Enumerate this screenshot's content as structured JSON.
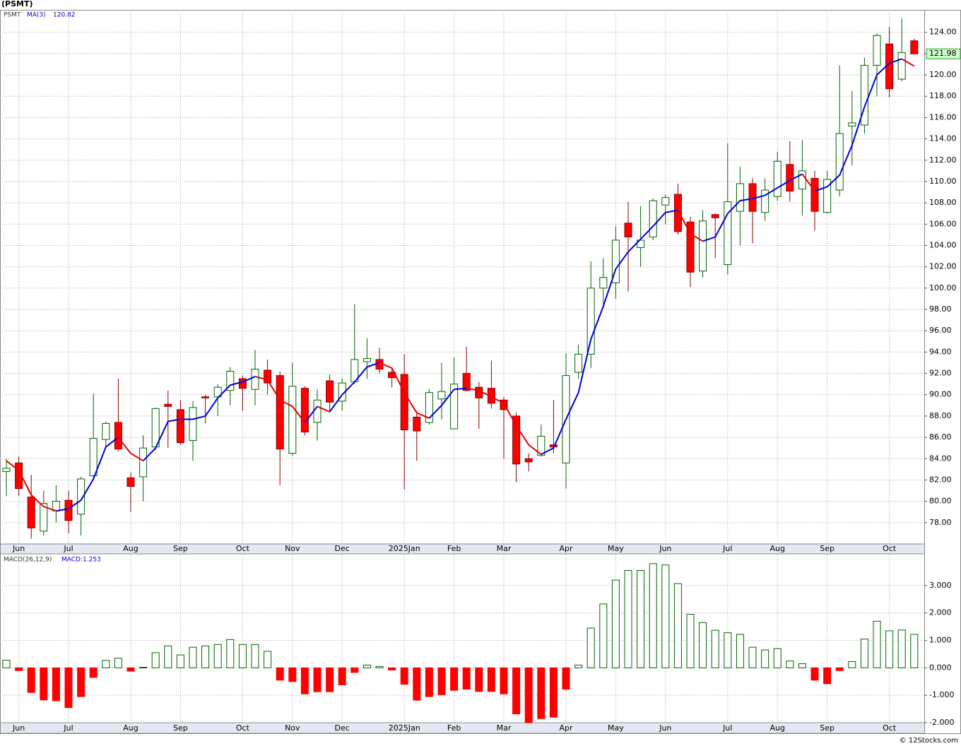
{
  "chart_data": [
    {
      "type": "candlestick",
      "title": "(PSMT)",
      "symbol": "PSMT",
      "categories": [
        null,
        "Jun",
        null,
        null,
        null,
        "Jul",
        null,
        null,
        null,
        null,
        "Aug",
        null,
        null,
        null,
        "Sep",
        null,
        null,
        null,
        null,
        "Oct",
        null,
        null,
        null,
        "Nov",
        null,
        null,
        null,
        "Dec",
        null,
        null,
        null,
        null,
        "2025Jan",
        null,
        null,
        null,
        "Feb",
        null,
        null,
        null,
        "Mar",
        null,
        null,
        null,
        null,
        "Apr",
        null,
        null,
        null,
        "May",
        null,
        null,
        null,
        "Jun",
        null,
        null,
        null,
        null,
        "Jul",
        null,
        null,
        null,
        "Aug",
        null,
        null,
        null,
        "Sep",
        null,
        null,
        null,
        null,
        "Oct",
        null,
        null
      ],
      "open": [
        82.8,
        83.6,
        80.4,
        77.2,
        79.1,
        80.1,
        78.8,
        82.4,
        85.8,
        87.4,
        82.2,
        82.3,
        85.1,
        89.1,
        88.6,
        85.7,
        89.8,
        89.8,
        90.4,
        91.5,
        90.5,
        92.3,
        91.8,
        84.5,
        90.6,
        87.4,
        91.3,
        89.4,
        91.2,
        93.1,
        93.3,
        92.1,
        91.9,
        87.9,
        87.4,
        89.6,
        86.8,
        92.0,
        90.7,
        90.6,
        89.5,
        88.0,
        84.0,
        84.3,
        85.3,
        83.6,
        92.1,
        93.8,
        100.0,
        100.5,
        106.1,
        103.8,
        104.8,
        107.8,
        108.8,
        106.2,
        101.6,
        106.9,
        102.2,
        107.2,
        109.8,
        107.1,
        108.6,
        111.6,
        109.3,
        110.3,
        107.1,
        109.2,
        115.2,
        115.3,
        120.9,
        122.9,
        119.6,
        123.2
      ],
      "high": [
        84.0,
        84.2,
        82.5,
        81.0,
        81.5,
        81.0,
        82.3,
        90.1,
        87.5,
        91.5,
        82.7,
        86.2,
        88.8,
        90.4,
        89.5,
        89.4,
        90.0,
        91.0,
        92.6,
        91.8,
        94.2,
        93.3,
        92.2,
        93.0,
        90.8,
        90.5,
        91.9,
        91.5,
        98.5,
        95.3,
        94.4,
        92.4,
        93.8,
        88.5,
        90.5,
        93.0,
        93.5,
        94.5,
        91.2,
        93.2,
        89.8,
        88.3,
        84.5,
        87.2,
        89.5,
        93.9,
        94.7,
        102.5,
        102.8,
        105.8,
        108.1,
        107.7,
        108.4,
        108.8,
        109.8,
        106.7,
        107.3,
        107.0,
        113.6,
        111.4,
        110.3,
        110.3,
        112.8,
        113.8,
        113.9,
        111.0,
        111.0,
        120.9,
        118.5,
        121.6,
        123.9,
        124.5,
        125.3,
        123.4
      ],
      "low": [
        80.5,
        80.5,
        76.5,
        76.8,
        78.0,
        77.0,
        76.8,
        82.0,
        85.0,
        84.7,
        79.0,
        80.0,
        84.8,
        85.0,
        85.3,
        83.8,
        87.3,
        88.0,
        89.0,
        88.5,
        89.0,
        90.0,
        81.5,
        84.3,
        86.2,
        85.7,
        88.5,
        88.5,
        91.0,
        91.5,
        92.0,
        90.7,
        81.1,
        83.8,
        87.2,
        87.7,
        86.8,
        90.3,
        86.8,
        88.7,
        84.0,
        81.8,
        82.8,
        84.2,
        84.5,
        81.2,
        91.5,
        92.5,
        98.5,
        99.0,
        99.7,
        102.0,
        104.5,
        106.0,
        105.0,
        100.1,
        101.0,
        102.8,
        101.3,
        104.0,
        104.2,
        106.3,
        108.2,
        108.1,
        106.8,
        105.4,
        107.0,
        108.6,
        111.5,
        114.5,
        118.0,
        117.9,
        119.4,
        121.9
      ],
      "close": [
        83.1,
        81.2,
        77.5,
        79.8,
        80.0,
        78.2,
        82.1,
        85.9,
        87.3,
        84.9,
        81.4,
        85.0,
        88.7,
        88.9,
        85.5,
        88.8,
        89.7,
        90.7,
        92.2,
        90.6,
        92.4,
        91.1,
        84.9,
        90.8,
        86.5,
        89.5,
        89.3,
        91.1,
        93.3,
        93.4,
        92.4,
        91.6,
        86.7,
        86.6,
        90.2,
        90.3,
        91.0,
        90.4,
        89.7,
        89.2,
        88.6,
        83.5,
        83.7,
        86.1,
        85.1,
        91.8,
        93.8,
        100.0,
        101.0,
        104.5,
        104.8,
        104.5,
        108.2,
        108.5,
        105.3,
        101.5,
        106.3,
        106.6,
        108.1,
        109.8,
        107.2,
        109.2,
        111.9,
        109.1,
        111.0,
        107.2,
        110.2,
        114.5,
        115.5,
        120.9,
        123.7,
        118.7,
        122.1,
        121.98
      ],
      "up_color": "#ffffff",
      "up_edge": "#006400",
      "down_color": "#ff0000",
      "down_edge": "#8b0000",
      "series": [
        {
          "name": "MA(3)",
          "up_color": "#0000dd",
          "down_color": "#ee0000",
          "values": [
            83.8,
            82.9,
            80.6,
            79.5,
            79.1,
            79.3,
            80.1,
            82.1,
            85.1,
            86.0,
            84.5,
            83.8,
            85.0,
            87.5,
            87.7,
            87.7,
            88.0,
            89.7,
            90.9,
            91.2,
            91.7,
            91.4,
            89.5,
            88.9,
            87.4,
            88.9,
            88.4,
            90.0,
            91.2,
            92.6,
            93.0,
            92.5,
            90.2,
            88.3,
            87.8,
            89.0,
            90.5,
            90.6,
            90.4,
            89.8,
            89.2,
            87.1,
            85.3,
            84.4,
            85.0,
            87.7,
            90.2,
            95.2,
            98.3,
            101.8,
            103.4,
            104.6,
            105.8,
            107.1,
            107.3,
            105.1,
            104.4,
            104.8,
            107.0,
            108.2,
            108.4,
            108.7,
            109.4,
            110.1,
            110.7,
            109.1,
            109.5,
            110.6,
            113.4,
            117.0,
            120.0,
            121.1,
            121.5,
            120.82
          ]
        }
      ],
      "ylim": [
        76,
        126.1
      ],
      "yticks": [
        {
          "value": 78,
          "label": "78.00"
        },
        {
          "value": 80,
          "label": "80.00"
        },
        {
          "value": 82,
          "label": "82.00"
        },
        {
          "value": 84,
          "label": "84.00"
        },
        {
          "value": 86,
          "label": "86.00"
        },
        {
          "value": 88,
          "label": "88.00"
        },
        {
          "value": 90,
          "label": "90.00"
        },
        {
          "value": 92,
          "label": "92.00"
        },
        {
          "value": 94,
          "label": "94.00"
        },
        {
          "value": 96,
          "label": "96.00"
        },
        {
          "value": 98,
          "label": "98.00"
        },
        {
          "value": 100,
          "label": "100.00"
        },
        {
          "value": 102,
          "label": "102.00"
        },
        {
          "value": 104,
          "label": "104.00"
        },
        {
          "value": 106,
          "label": "106.00"
        },
        {
          "value": 108,
          "label": "108.00"
        },
        {
          "value": 110,
          "label": "110.00"
        },
        {
          "value": 112,
          "label": "112.00"
        },
        {
          "value": 114,
          "label": "114.00"
        },
        {
          "value": 116,
          "label": "116.00"
        },
        {
          "value": 118,
          "label": "118.00"
        },
        {
          "value": 120,
          "label": "120.00"
        },
        {
          "value": 122,
          "label": "122.00"
        },
        {
          "value": 124,
          "label": "124.00"
        }
      ],
      "grid": true
    },
    {
      "type": "bar",
      "title": "MACD(26,12,9)",
      "legend_value": "MACD:1.253",
      "values": [
        0.28,
        -0.1,
        -0.9,
        -1.17,
        -1.2,
        -1.45,
        -1.05,
        -0.35,
        0.27,
        0.35,
        -0.12,
        0.02,
        0.55,
        0.8,
        0.47,
        0.75,
        0.8,
        0.85,
        1.03,
        0.85,
        0.85,
        0.6,
        -0.45,
        -0.5,
        -0.95,
        -0.87,
        -0.87,
        -0.62,
        -0.17,
        0.1,
        0.05,
        -0.08,
        -0.6,
        -1.18,
        -1.05,
        -0.98,
        -0.82,
        -0.78,
        -0.86,
        -0.86,
        -0.95,
        -1.68,
        -2.0,
        -1.85,
        -1.8,
        -0.78,
        0.1,
        1.45,
        2.33,
        3.2,
        3.55,
        3.55,
        3.8,
        3.75,
        3.07,
        1.95,
        1.65,
        1.37,
        1.28,
        1.22,
        0.75,
        0.65,
        0.7,
        0.25,
        0.15,
        -0.45,
        -0.58,
        -0.1,
        0.23,
        1.05,
        1.7,
        1.35,
        1.38,
        1.22
      ],
      "pos_edge": "#006400",
      "neg_color": "#ff0000",
      "ylim": [
        -2.0,
        4.13
      ],
      "yticks": [
        {
          "value": -2,
          "label": "-2.000"
        },
        {
          "value": -1,
          "label": "-1.000"
        },
        {
          "value": 0,
          "label": "0.000"
        },
        {
          "value": 1,
          "label": "1.000"
        },
        {
          "value": 2,
          "label": "2.000"
        },
        {
          "value": 3,
          "label": "3.000"
        }
      ],
      "grid": true
    }
  ],
  "footer": "© 12Stocks.com"
}
